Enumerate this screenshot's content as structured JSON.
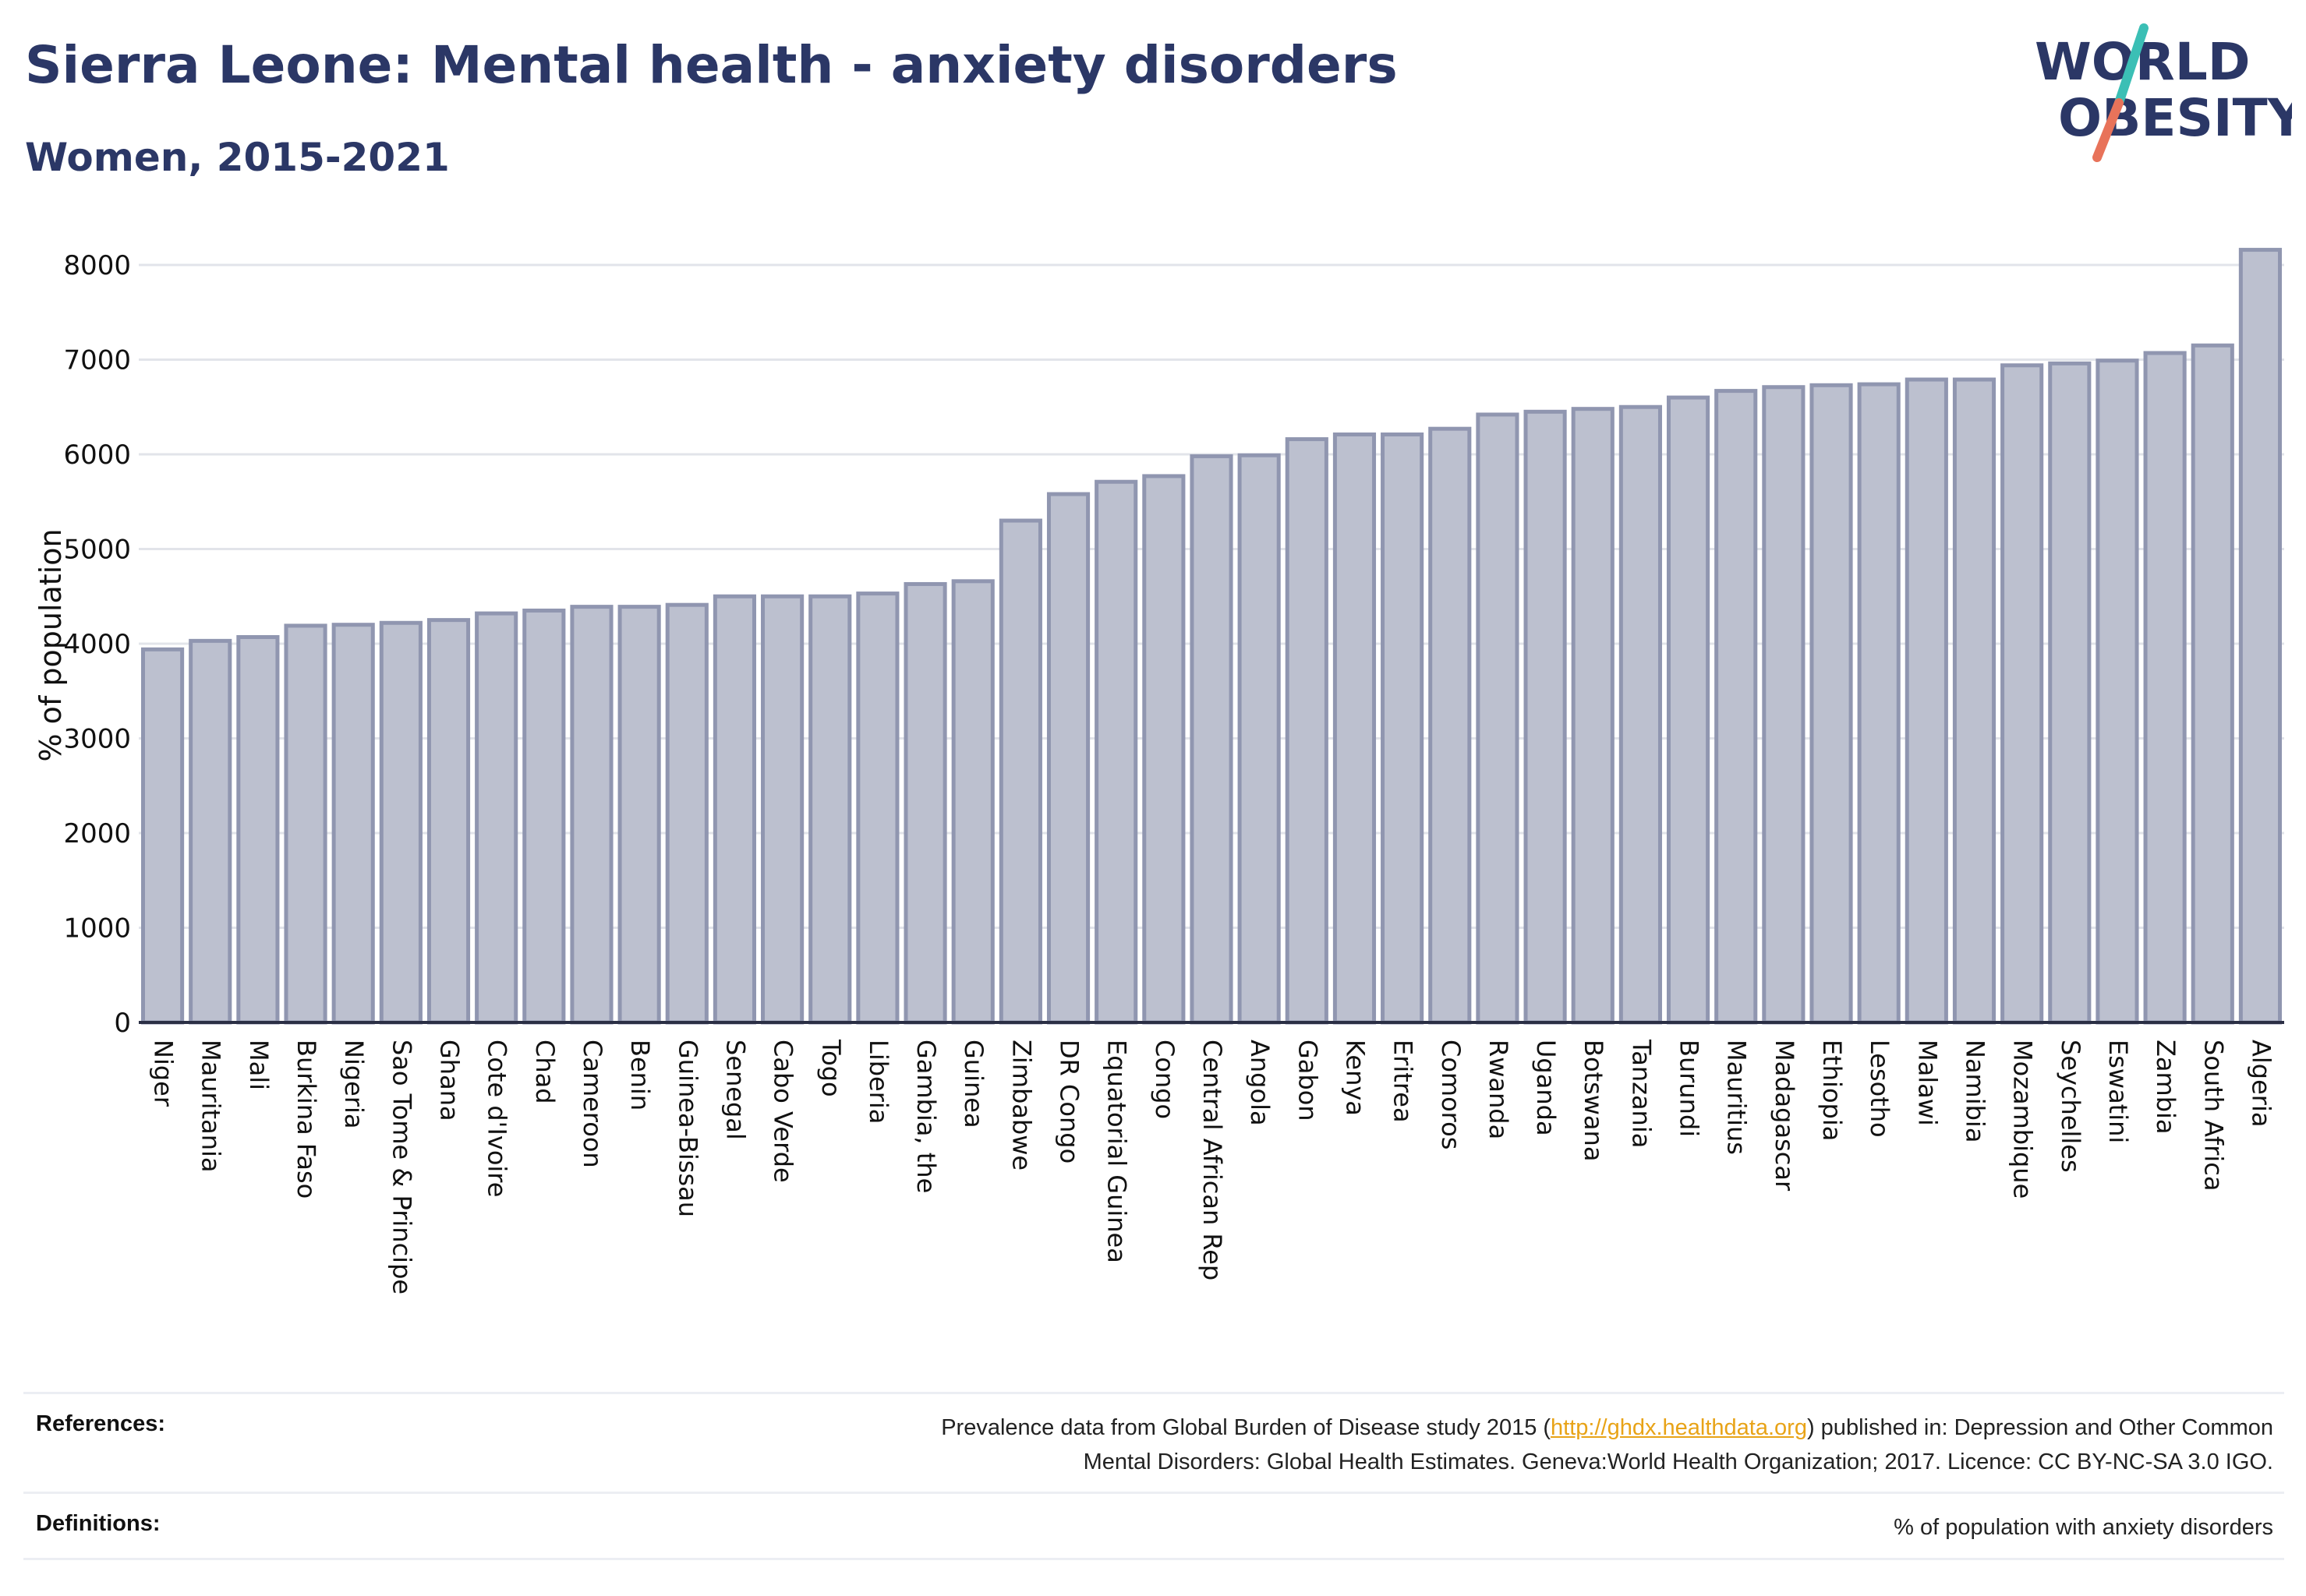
{
  "header": {
    "title": "Sierra Leone: Mental health - anxiety disorders",
    "subtitle": "Women, 2015-2021"
  },
  "logo": {
    "line1": "WORLD",
    "line2": "OBESITY",
    "colors": {
      "text": "#2b3766",
      "slash_top": "#3bbfb5",
      "slash_bottom": "#e8735a"
    }
  },
  "chart_data": {
    "type": "bar",
    "ylabel": "% of population",
    "ylim": [
      0,
      8200
    ],
    "yticks": [
      0,
      1000,
      2000,
      3000,
      4000,
      5000,
      6000,
      7000,
      8000
    ],
    "grid": true,
    "bar_color": "#bcc0cf",
    "bar_edge_color": "#9096b0",
    "categories": [
      "Niger",
      "Mauritania",
      "Mali",
      "Burkina Faso",
      "Nigeria",
      "Sao Tome & Principe",
      "Ghana",
      "Cote d'Ivoire",
      "Chad",
      "Cameroon",
      "Benin",
      "Guinea-Bissau",
      "Senegal",
      "Cabo Verde",
      "Togo",
      "Liberia",
      "Gambia, the",
      "Guinea",
      "Zimbabwe",
      "DR Congo",
      "Equatorial Guinea",
      "Congo",
      "Central African Rep",
      "Angola",
      "Gabon",
      "Kenya",
      "Eritrea",
      "Comoros",
      "Rwanda",
      "Uganda",
      "Botswana",
      "Tanzania",
      "Burundi",
      "Mauritius",
      "Madagascar",
      "Ethiopia",
      "Lesotho",
      "Malawi",
      "Namibia",
      "Mozambique",
      "Seychelles",
      "Eswatini",
      "Zambia",
      "South Africa",
      "Algeria"
    ],
    "values": [
      3940,
      4030,
      4070,
      4190,
      4200,
      4220,
      4250,
      4320,
      4350,
      4390,
      4390,
      4410,
      4500,
      4500,
      4500,
      4530,
      4630,
      4660,
      5300,
      5580,
      5710,
      5770,
      5980,
      5990,
      6160,
      6210,
      6210,
      6270,
      6420,
      6450,
      6480,
      6500,
      6600,
      6670,
      6710,
      6730,
      6740,
      6790,
      6790,
      6940,
      6960,
      6990,
      7070,
      7150,
      8160
    ]
  },
  "footer": {
    "references_label": "References:",
    "references_pre": "Prevalence data from Global Burden of Disease study 2015 (",
    "references_link": "http://ghdx.healthdata.org",
    "references_post": ") published in: Depression and Other Common",
    "references_line2": "Mental Disorders: Global Health Estimates. Geneva:World Health Organization; 2017. Licence: CC BY-NC-SA 3.0 IGO.",
    "definitions_label": "Definitions:",
    "definitions_text": "% of population with anxiety disorders"
  }
}
